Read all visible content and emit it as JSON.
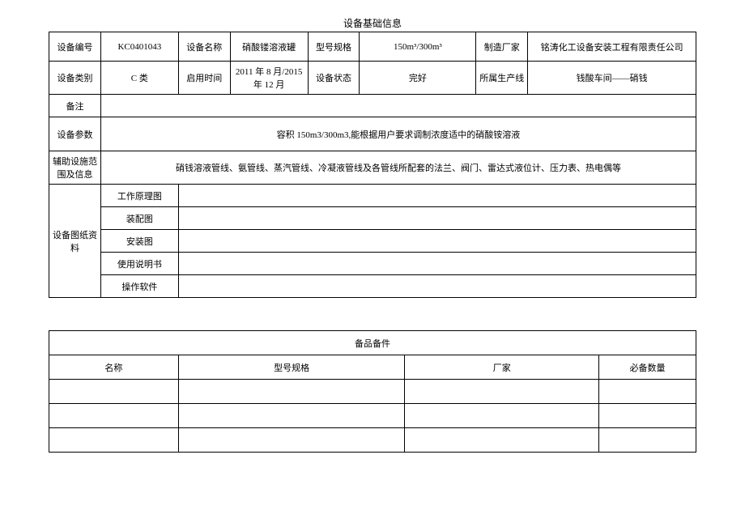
{
  "title": "设备基础信息",
  "table1": {
    "row1": {
      "label1": "设备编号",
      "val1": "KC0401043",
      "label2": "设备名称",
      "val2": "硝酸镂溶液罐",
      "label3": "型号规格",
      "val3": "150m³/300m³",
      "label4": "制造厂家",
      "val4": "铭涛化工设备安装工程有限责任公司"
    },
    "row2": {
      "label1": "设备类别",
      "val1": "C 类",
      "label2": "启用时间",
      "val2": "2011 年 8 月/2015 年 12 月",
      "label3": "设备状态",
      "val3": "完好",
      "label4": "所属生产线",
      "val4": "钱酸车间——硝钱"
    },
    "row3": {
      "label": "备注",
      "val": ""
    },
    "row4": {
      "label": "设备参数",
      "val": "容积 150m3/300m3,能根据用户要求调制浓度适中的硝酸铵溶液"
    },
    "row5": {
      "label": "辅助设施范围及信息",
      "val": "硝钱溶液管线、氨管线、蒸汽管线、冷凝液管线及各管线所配套的法兰、阀门、雷达式液位计、压力表、热电偶等"
    },
    "row6": {
      "label": "设备图纸资料",
      "items": [
        "工作原理图",
        "装配图",
        "安装图",
        "使用说明书",
        "操作软件"
      ]
    }
  },
  "table2": {
    "title": "备品备件",
    "headers": [
      "名称",
      "型号规格",
      "厂家",
      "必备数量"
    ]
  }
}
